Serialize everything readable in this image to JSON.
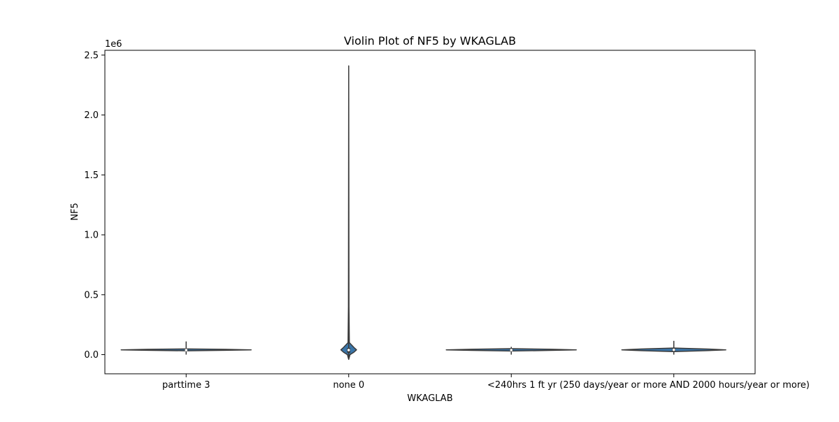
{
  "chart_data": {
    "type": "violin",
    "title": "Violin Plot of NF5 by WKAGLAB",
    "xlabel": "WKAGLAB",
    "ylabel": "NF5",
    "y_offset_label": "1e6",
    "categories": [
      "parttime 3",
      "none 0",
      "<240hrs 1",
      "ft yr (250 days/year or more AND 2000 hours/year or more)"
    ],
    "y_scale_factor": 1000000,
    "ylim": [
      -160000,
      2540000
    ],
    "yticks": [
      0,
      500000,
      1000000,
      1500000,
      2000000,
      2500000
    ],
    "ytick_labels": [
      "0.0",
      "0.5",
      "1.0",
      "1.5",
      "2.0",
      "2.5"
    ],
    "grid": false,
    "legend": "none",
    "colors": {
      "violin_fill": "#3a75a8",
      "outline": "#3a3a3a",
      "inner_box": "#3a3a3a",
      "median_dot": "#ffffff"
    },
    "violins": [
      {
        "category": "parttime 3",
        "min": 0,
        "q1": 30000,
        "median": 38000,
        "q3": 44000,
        "max": 110000,
        "profile": [
          {
            "y": 32000,
            "w": 0.0
          },
          {
            "y": 36000,
            "w": 0.6
          },
          {
            "y": 40000,
            "w": 1.0
          },
          {
            "y": 44000,
            "w": 0.6
          },
          {
            "y": 48000,
            "w": 0.0
          }
        ]
      },
      {
        "category": "none 0",
        "min": -40000,
        "q1": 15000,
        "median": 38000,
        "q3": 55000,
        "max": 2410000,
        "profile": [
          {
            "y": -40000,
            "w": 0.0
          },
          {
            "y": 0,
            "w": 0.02
          },
          {
            "y": 20000,
            "w": 0.08
          },
          {
            "y": 40000,
            "w": 0.12
          },
          {
            "y": 60000,
            "w": 0.08
          },
          {
            "y": 100000,
            "w": 0.01
          },
          {
            "y": 400000,
            "w": 0.004
          },
          {
            "y": 2410000,
            "w": 0.0
          }
        ]
      },
      {
        "category": "<240hrs 1",
        "min": 0,
        "q1": 30000,
        "median": 38000,
        "q3": 44000,
        "max": 65000,
        "profile": [
          {
            "y": 30000,
            "w": 0.0
          },
          {
            "y": 35000,
            "w": 0.6
          },
          {
            "y": 40000,
            "w": 1.0
          },
          {
            "y": 45000,
            "w": 0.6
          },
          {
            "y": 50000,
            "w": 0.0
          }
        ]
      },
      {
        "category": "ft yr (250 days/year or more AND 2000 hours/year or more)",
        "min": 0,
        "q1": 28000,
        "median": 40000,
        "q3": 52000,
        "max": 115000,
        "profile": [
          {
            "y": 25000,
            "w": 0.0
          },
          {
            "y": 33000,
            "w": 0.5
          },
          {
            "y": 40000,
            "w": 0.8
          },
          {
            "y": 47000,
            "w": 0.5
          },
          {
            "y": 55000,
            "w": 0.0
          }
        ]
      }
    ]
  }
}
